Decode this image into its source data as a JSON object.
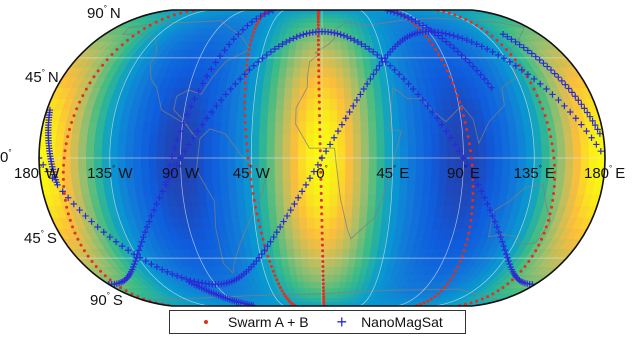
{
  "map": {
    "projection": "Robinson",
    "colormap": "parula",
    "grid": "on",
    "lat_labels": [
      {
        "lat": 90,
        "text": "90",
        "hemi": "N"
      },
      {
        "lat": 45,
        "text": "45",
        "hemi": "N"
      },
      {
        "lat": 0,
        "text": "0",
        "hemi": ""
      },
      {
        "lat": -45,
        "text": "45",
        "hemi": "S"
      },
      {
        "lat": -90,
        "text": "90",
        "hemi": "S"
      }
    ],
    "lon_labels": [
      {
        "lon": -180,
        "text": "180",
        "hemi": "W"
      },
      {
        "lon": -135,
        "text": "135",
        "hemi": "W"
      },
      {
        "lon": -90,
        "text": "90",
        "hemi": "W"
      },
      {
        "lon": -45,
        "text": "45",
        "hemi": "W"
      },
      {
        "lon": 0,
        "text": "0",
        "hemi": ""
      },
      {
        "lon": 45,
        "text": "45",
        "hemi": "E"
      },
      {
        "lon": 90,
        "text": "90",
        "hemi": "E"
      },
      {
        "lon": 135,
        "text": "135",
        "hemi": "E"
      },
      {
        "lon": 180,
        "text": "180",
        "hemi": "E"
      }
    ],
    "degree_symbol": "°"
  },
  "legend": {
    "swarm_label": "Swarm A + B",
    "nanomagsat_label": "NanoMagSat",
    "swarm_color": "#e0301e",
    "nanomagsat_color": "#2b2bd6"
  }
}
